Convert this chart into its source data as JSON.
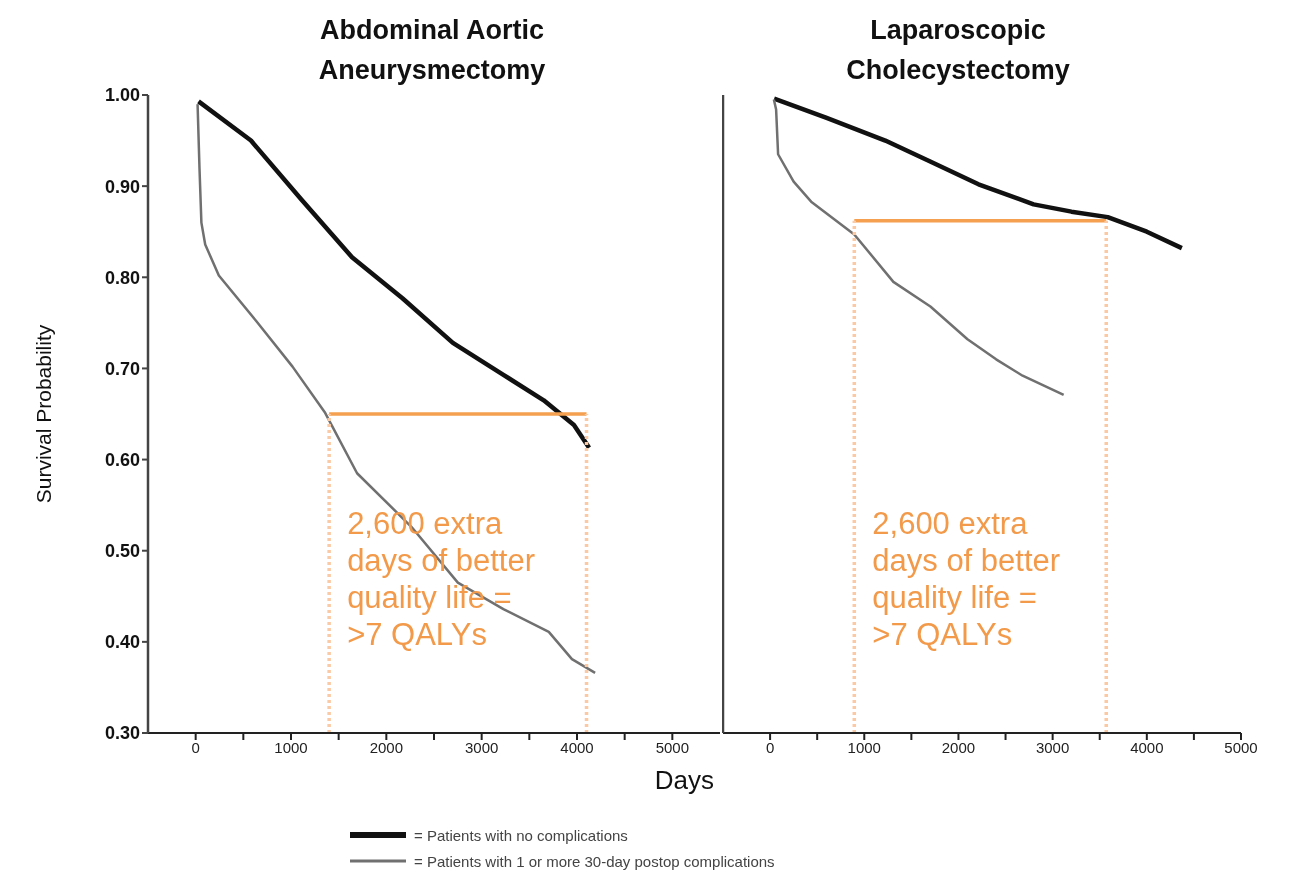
{
  "chart_data": [
    {
      "type": "line",
      "title": "Abdominal Aortic\nAneurysmectomy",
      "xlabel": "Days",
      "ylabel": "Survival Probability",
      "legend": "bottom",
      "xlim": [
        -500,
        5500
      ],
      "xticks": [
        0,
        {
          "value": 500,
          "label": null
        },
        1000,
        {
          "value": 1500,
          "label": null
        },
        2000,
        {
          "value": 2500,
          "label": null
        },
        3000,
        {
          "value": 3500,
          "label": null
        },
        4000,
        {
          "value": 4500,
          "label": null
        },
        5000
      ],
      "ylim": [
        0.3,
        1.0
      ],
      "yticks": [
        {
          "value": 0.3,
          "label": "0.30"
        },
        {
          "value": 0.4,
          "label": "0.40"
        },
        {
          "value": 0.5,
          "label": "0.50"
        },
        {
          "value": 0.6,
          "label": "0.60"
        },
        {
          "value": 0.7,
          "label": "0.70"
        },
        {
          "value": 0.8,
          "label": "0.80"
        },
        {
          "value": 0.9,
          "label": "0.90"
        },
        {
          "value": 1.0,
          "label": "1.00"
        }
      ],
      "series": [
        {
          "name": "= Patients with no complications",
          "color": "#111111",
          "x": [
            30,
            580,
            1111,
            1640,
            2169,
            2698,
            3228,
            3651,
            3968,
            4127
          ],
          "values": [
            0.993,
            0.95,
            0.885,
            0.822,
            0.777,
            0.728,
            0.693,
            0.665,
            0.638,
            0.613
          ]
        },
        {
          "name": "= Patients with 1 or more 30-day postop complications",
          "color": "#707070",
          "x": [
            20,
            40,
            60,
            100,
            243,
            635,
            1016,
            1354,
            1693,
            2265,
            2750,
            3228,
            3704,
            3947,
            4190
          ],
          "values": [
            0.99,
            0.92,
            0.86,
            0.836,
            0.802,
            0.752,
            0.702,
            0.652,
            0.585,
            0.526,
            0.465,
            0.436,
            0.411,
            0.381,
            0.366
          ]
        },
        {
          "color": "#f5a050",
          "x": [
            1400,
            4100
          ],
          "values": [
            0.65,
            0.65
          ]
        },
        {
          "color": "#fbc9a3",
          "line_style": "dotted",
          "x": [
            1400,
            1400
          ],
          "values": [
            0.3,
            0.65
          ]
        },
        {
          "color": "#fbc9a3",
          "line_style": "dotted",
          "x": [
            4100,
            4100
          ],
          "values": [
            0.3,
            0.65
          ]
        }
      ],
      "annotations": [
        "2,600 extra\ndays of better\nquality life =\n>7 QALYs"
      ]
    },
    {
      "type": "line",
      "title": "Laparoscopic\nCholecystectomy",
      "tick_labels": "x",
      "xlim": [
        -500,
        5000
      ],
      "xticks": [
        0,
        {
          "value": 500,
          "label": null
        },
        1000,
        {
          "value": 1500,
          "label": null
        },
        2000,
        {
          "value": 2500,
          "label": null
        },
        3000,
        {
          "value": 3500,
          "label": null
        },
        4000,
        {
          "value": 4500,
          "label": null
        },
        5000
      ],
      "ylim": [
        0.3,
        1.0
      ],
      "series": [
        {
          "color": "#111111",
          "x": [
            43,
            600,
            1223,
            1700,
            2213,
            2798,
            3200,
            3585,
            4000,
            4372
          ],
          "values": [
            0.996,
            0.975,
            0.95,
            0.927,
            0.902,
            0.88,
            0.872,
            0.866,
            0.85,
            0.832
          ]
        },
        {
          "color": "#707070",
          "x": [
            40,
            64,
            85,
            250,
            436,
            894,
            1309,
            1702,
            2096,
            2400,
            2681,
            3117
          ],
          "values": [
            0.995,
            0.984,
            0.935,
            0.905,
            0.883,
            0.847,
            0.795,
            0.768,
            0.732,
            0.71,
            0.692,
            0.671
          ]
        },
        {
          "color": "#f5a050",
          "x": [
            894,
            3569
          ],
          "values": [
            0.862,
            0.862
          ]
        },
        {
          "color": "#fbc9a3",
          "line_style": "dotted",
          "x": [
            894,
            894
          ],
          "values": [
            0.3,
            0.862
          ]
        },
        {
          "color": "#fbc9a3",
          "line_style": "dotted",
          "x": [
            3569,
            3569
          ],
          "values": [
            0.3,
            0.862
          ]
        }
      ],
      "annotations": [
        "2,600 extra\ndays of better\nquality life =\n>7 QALYs"
      ]
    }
  ]
}
